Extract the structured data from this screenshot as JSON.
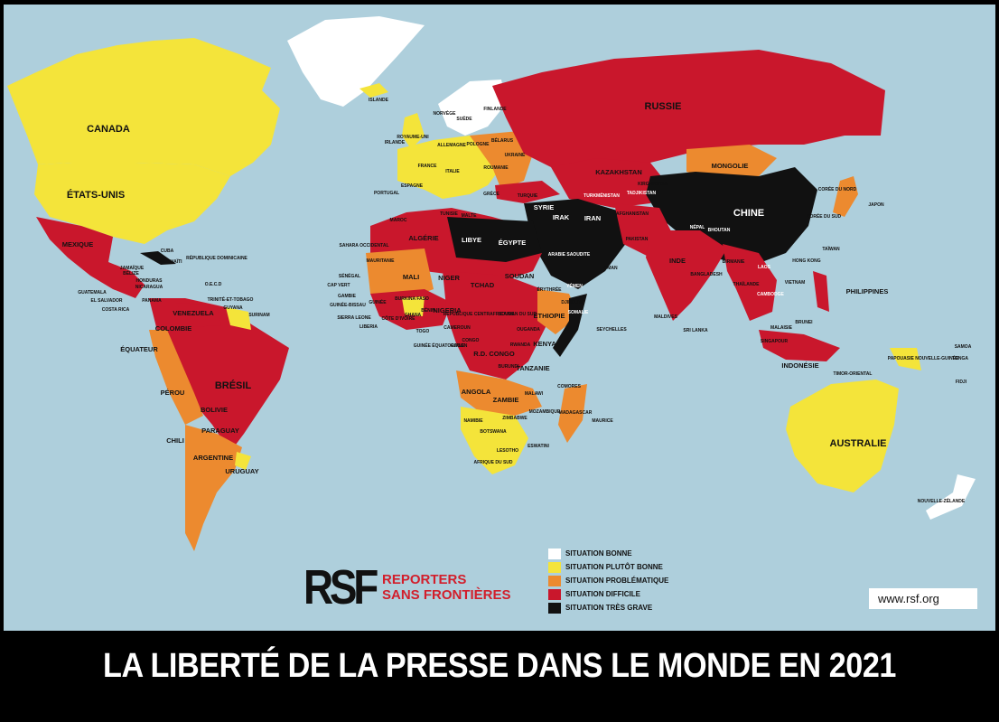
{
  "title": "LA LIBERTÉ DE LA PRESSE DANS LE MONDE EN 2021",
  "url": "www.rsf.org",
  "logo": {
    "mark": "RSF",
    "line1": "REPORTERS",
    "line2": "SANS FRONTIÈRES"
  },
  "colors": {
    "ocean": "#aecfdc",
    "bonne": "#ffffff",
    "plutot_bonne": "#f4e43a",
    "problematique": "#ec8a2f",
    "difficile": "#c9172c",
    "tres_grave": "#111111",
    "brand_red": "#d21e2b"
  },
  "legend": [
    {
      "label": "SITUATION BONNE",
      "color": "#ffffff"
    },
    {
      "label": "SITUATION PLUTÔT BONNE",
      "color": "#f4e43a"
    },
    {
      "label": "SITUATION PROBLÉMATIQUE",
      "color": "#ec8a2f"
    },
    {
      "label": "SITUATION DIFFICILE",
      "color": "#c9172c"
    },
    {
      "label": "SITUATION TRÈS GRAVE",
      "color": "#111111"
    }
  ],
  "labels": {
    "canada": "CANADA",
    "usa": "ÉTATS-UNIS",
    "mexique": "MEXIQUE",
    "cuba": "CUBA",
    "haiti": "HAÏTI",
    "rep_dom": "RÉPUBLIQUE DOMINICAINE",
    "jamaique": "JAMAÏQUE",
    "belize": "BÉLIZE",
    "honduras": "HONDURAS",
    "guatemala": "GUATEMALA",
    "nicaragua": "NICARAGUA",
    "salvador": "EL SALVADOR",
    "costa_rica": "COSTA RICA",
    "panama": "PANAMA",
    "oecd": "O.E.C.D",
    "trinite": "TRINITÉ-ET-TOBAGO",
    "guyana": "GUYANA",
    "surinam": "SURINAM",
    "venezuela": "VENEZUELA",
    "colombie": "COLOMBIE",
    "equateur": "ÉQUATEUR",
    "perou": "PÉROU",
    "bresil": "BRÉSIL",
    "bolivie": "BOLIVIE",
    "paraguay": "PARAGUAY",
    "chili": "CHILI",
    "argentine": "ARGENTINE",
    "uruguay": "URUGUAY",
    "islande": "ISLANDE",
    "norvege": "NORVÈGE",
    "suede": "SUÈDE",
    "finlande": "FINLANDE",
    "irlande": "IRLANDE",
    "royaume_uni": "ROYAUME-UNI",
    "france": "FRANCE",
    "espagne": "ESPAGNE",
    "portugal": "PORTUGAL",
    "allemagne": "ALLEMAGNE",
    "pologne": "POLOGNE",
    "belarus": "BÉLARUS",
    "ukraine": "UKRAINE",
    "roumanie": "ROUMANIE",
    "italie": "ITALIE",
    "grece": "GRÈCE",
    "turquie": "TURQUIE",
    "russie": "RUSSIE",
    "kazakhstan": "KAZAKHSTAN",
    "mongolie": "MONGOLIE",
    "chine": "CHINE",
    "japon": "JAPON",
    "coree_nord": "CORÉE DU NORD",
    "coree_sud": "CORÉE DU SUD",
    "taiwan": "TAÏWAN",
    "hong_kong": "HONG KONG",
    "turkmenistan": "TURKMÉNISTAN",
    "kirghizstan": "KIRGHIZSTAN",
    "tadjikistan": "TADJIKISTAN",
    "afghanistan": "AFGHANISTAN",
    "iran": "IRAN",
    "irak": "IRAK",
    "syrie": "SYRIE",
    "pakistan": "PAKISTAN",
    "inde": "INDE",
    "nepal": "NÉPAL",
    "bhoutan": "BHOUTAN",
    "bangladesh": "BANGLADESH",
    "birmanie": "BIRMANIE",
    "laos": "LAOS",
    "thailande": "THAÏLANDE",
    "cambodge": "CAMBODGE",
    "vietnam": "VIETNAM",
    "philippines": "PHILIPPINES",
    "malaisie": "MALAISIE",
    "brunei": "BRUNEI",
    "singapour": "SINGAPOUR",
    "indonesie": "INDONÉSIE",
    "timor": "TIMOR-ORIENTAL",
    "papouasie": "PAPOUASIE NOUVELLE-GUINÉE",
    "samoa": "SAMOA",
    "tonga": "TONGA",
    "fidji": "FIDJI",
    "australie": "AUSTRALIE",
    "nz": "NOUVELLE-ZÉLANDE",
    "maldives": "MALDIVES",
    "sri_lanka": "SRI LANKA",
    "seychelles": "SEYCHELLES",
    "comores": "COMORES",
    "maurice": "MAURICE",
    "madagascar": "MADAGASCAR",
    "maroc": "MAROC",
    "algerie": "ALGÉRIE",
    "tunisie": "TUNISIE",
    "malte": "MALTE",
    "libye": "LIBYE",
    "egypte": "ÉGYPTE",
    "arabie": "ARABIE SAOUDITE",
    "yemen": "YÉMEN",
    "oman": "OMAN",
    "sahara": "SAHARA OCCIDENTAL",
    "mauritanie": "MAURITANIE",
    "mali": "MALI",
    "niger": "NIGER",
    "tchad": "TCHAD",
    "soudan": "SOUDAN",
    "erythree": "ÉRYTHRÉE",
    "djibouti": "DJIBOUTI",
    "somalie": "SOMALIE",
    "ethiopie": "ÉTHIOPIE",
    "soudan_sud": "SOUDAN DU SUD",
    "rca": "RÉPUBLIQUE CENTRAFRICAINE",
    "cap_vert": "CAP VERT",
    "senegal": "SÉNÉGAL",
    "gambie": "GAMBIE",
    "guinee_bissau": "GUINÉE-BISSAU",
    "guinee": "GUINÉE",
    "sierra_leone": "SIERRA LEONE",
    "liberia": "LIBERIA",
    "cote_ivoire": "CÔTE D'IVOIRE",
    "burkina": "BURKINA FASO",
    "ghana": "GHANA",
    "togo": "TOGO",
    "benin": "BÉNIN",
    "nigeria": "NIGERIA",
    "cameroun": "CAMEROUN",
    "guinee_eq": "GUINÉE ÉQUATORIALE",
    "gabon": "GABON",
    "congo": "CONGO",
    "rdc": "R.D. CONGO",
    "ouganda": "OUGANDA",
    "kenya": "KENYA",
    "rwanda": "RWANDA",
    "burundi": "BURUNDI",
    "tanzanie": "TANZANIE",
    "angola": "ANGOLA",
    "zambie": "ZAMBIE",
    "malawi": "MALAWI",
    "mozambique": "MOZAMBIQUE",
    "zimbabwe": "ZIMBABWE",
    "namibie": "NAMIBIE",
    "botswana": "BOTSWANA",
    "afrique_sud": "AFRIQUE DU SUD",
    "lesotho": "LESOTHO",
    "eswatini": "ESWATINI"
  }
}
